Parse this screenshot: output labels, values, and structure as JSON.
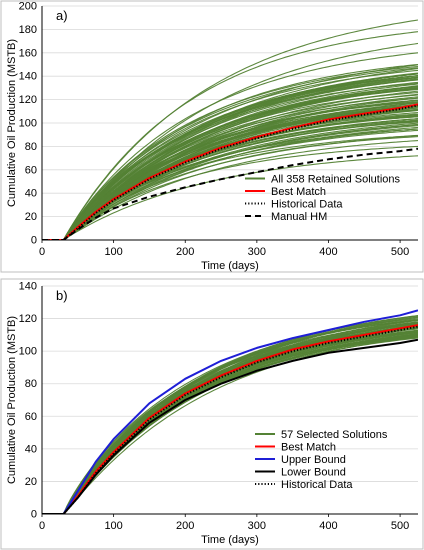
{
  "chart_data": [
    {
      "panel_label": "a)",
      "type": "line",
      "xlabel": "Time (days)",
      "ylabel": "Cumulative Oil Production (MSTB)",
      "xlim": [
        0,
        525
      ],
      "ylim": [
        0,
        200
      ],
      "xticks": [
        0,
        100,
        200,
        300,
        400,
        500
      ],
      "yticks": [
        0,
        20,
        40,
        60,
        80,
        100,
        120,
        140,
        160,
        180,
        200
      ],
      "grid": "horizontal",
      "legend_position": "lower-right",
      "onset_day": 30,
      "ensemble": {
        "name": "All 358 Retained Solutions",
        "color": "#548235",
        "count": 90,
        "final_values_range": [
          72,
          188
        ],
        "outlier_final_values": [
          188,
          178,
          168,
          160,
          150,
          85,
          80,
          72
        ]
      },
      "series": [
        {
          "name": "Best Match",
          "color": "#ff0000",
          "style": "solid",
          "x": [
            30,
            50,
            75,
            100,
            150,
            200,
            250,
            300,
            350,
            400,
            450,
            500,
            525
          ],
          "values": [
            0,
            11,
            24,
            35,
            53,
            67,
            79,
            88,
            96,
            103,
            108,
            113,
            116
          ]
        },
        {
          "name": "Historical Data",
          "color": "#000000",
          "style": "dotted",
          "x": [
            30,
            50,
            75,
            100,
            150,
            200,
            250,
            300,
            350,
            400,
            450,
            500,
            525
          ],
          "values": [
            0,
            10,
            23,
            34,
            52,
            66,
            78,
            87,
            95,
            102,
            107,
            112,
            115
          ]
        },
        {
          "name": "Manual HM",
          "color": "#000000",
          "style": "dashed",
          "x": [
            30,
            50,
            75,
            100,
            150,
            200,
            250,
            300,
            350,
            400,
            450,
            500,
            525
          ],
          "values": [
            0,
            9,
            19,
            27,
            37,
            45,
            52,
            58,
            64,
            69,
            73,
            76,
            78
          ]
        }
      ]
    },
    {
      "panel_label": "b)",
      "type": "line",
      "xlabel": "Time (days)",
      "ylabel": "Cumulative Oil Production (MSTB)",
      "xlim": [
        0,
        525
      ],
      "ylim": [
        0,
        140
      ],
      "xticks": [
        0,
        100,
        200,
        300,
        400,
        500
      ],
      "yticks": [
        0,
        20,
        40,
        60,
        80,
        100,
        120,
        140
      ],
      "grid": "horizontal",
      "legend_position": "lower-right",
      "onset_day": 30,
      "ensemble": {
        "name": "57 Selected Solutions",
        "color": "#548235",
        "count": 57,
        "final_values_range": [
          108,
          122
        ]
      },
      "series": [
        {
          "name": "Best Match",
          "color": "#ff0000",
          "style": "solid",
          "x": [
            30,
            50,
            75,
            100,
            150,
            200,
            250,
            300,
            350,
            400,
            450,
            500,
            525
          ],
          "values": [
            0,
            11,
            26,
            38,
            59,
            74,
            85,
            94,
            101,
            106,
            110,
            114,
            116
          ]
        },
        {
          "name": "Upper Bound",
          "color": "#1f1fd6",
          "style": "solid",
          "x": [
            30,
            50,
            75,
            100,
            150,
            200,
            250,
            300,
            350,
            400,
            450,
            500,
            525
          ],
          "values": [
            0,
            14,
            32,
            46,
            68,
            83,
            94,
            102,
            108,
            113,
            118,
            122,
            125
          ]
        },
        {
          "name": "Lower Bound",
          "color": "#000000",
          "style": "solid",
          "x": [
            30,
            50,
            75,
            100,
            150,
            200,
            250,
            300,
            350,
            400,
            450,
            500,
            525
          ],
          "values": [
            0,
            10,
            24,
            36,
            56,
            70,
            80,
            88,
            94,
            99,
            102,
            105,
            107
          ]
        },
        {
          "name": "Historical Data",
          "color": "#000000",
          "style": "dotted",
          "x": [
            30,
            50,
            75,
            100,
            150,
            200,
            250,
            300,
            350,
            400,
            450,
            500,
            525
          ],
          "values": [
            0,
            10,
            25,
            37,
            58,
            73,
            84,
            93,
            100,
            105,
            109,
            113,
            115
          ]
        }
      ]
    }
  ]
}
